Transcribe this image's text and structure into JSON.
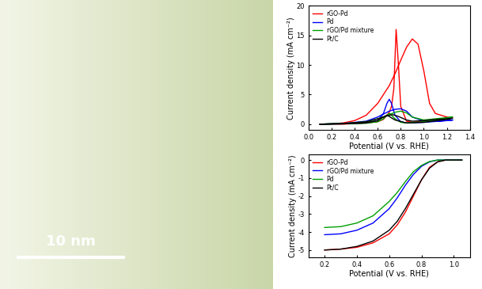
{
  "image": {
    "scale_bar": "10 nm"
  },
  "chart_data": [
    {
      "type": "line",
      "xlabel": "Potential (V vs. RHE)",
      "ylabel": "Current density (mA cm⁻²)",
      "xlim": [
        0.0,
        1.4
      ],
      "xticks": [
        0.0,
        0.2,
        0.4,
        0.6,
        0.8,
        1.0,
        1.2,
        1.4
      ],
      "ylim": [
        -1,
        20
      ],
      "yticks": [
        0,
        5,
        10,
        15,
        20
      ],
      "legend": "upper left",
      "series": [
        {
          "name": "rGO-Pd",
          "color": "#ff0000",
          "x": [
            0.1,
            0.2,
            0.3,
            0.4,
            0.5,
            0.6,
            0.7,
            0.75,
            0.8,
            0.85,
            0.9,
            0.95,
            1.0,
            1.05,
            1.1,
            1.2,
            1.25,
            1.2,
            1.1,
            1.0,
            0.9,
            0.85,
            0.8,
            0.78,
            0.76,
            0.74,
            0.72,
            0.7,
            0.65,
            0.6,
            0.5,
            0.4,
            0.3,
            0.2,
            0.1
          ],
          "values": [
            0,
            0.05,
            0.2,
            0.6,
            1.5,
            3.5,
            6.5,
            8.5,
            10.8,
            13,
            14.4,
            13.5,
            9,
            3.5,
            1.8,
            1.2,
            1.1,
            1.0,
            0.8,
            0.5,
            0.3,
            0.5,
            3,
            10,
            16,
            6,
            3,
            2,
            0.8,
            0.4,
            0.2,
            0.1,
            0,
            0,
            0
          ]
        },
        {
          "name": "Pd",
          "color": "#0000ff",
          "x": [
            0.1,
            0.3,
            0.5,
            0.6,
            0.7,
            0.75,
            0.8,
            0.85,
            0.9,
            1.0,
            1.1,
            1.2,
            1.25,
            1.2,
            1.0,
            0.85,
            0.8,
            0.75,
            0.72,
            0.7,
            0.68,
            0.65,
            0.6,
            0.5,
            0.3,
            0.1
          ],
          "values": [
            0,
            0.1,
            0.5,
            1.2,
            2.2,
            2.5,
            2.6,
            2.2,
            1.2,
            0.5,
            0.5,
            0.6,
            0.7,
            0.6,
            0.3,
            0.2,
            0.4,
            1.5,
            3.5,
            4.2,
            3.5,
            1.8,
            0.6,
            0.2,
            0.05,
            0
          ]
        },
        {
          "name": "rGO/Pd mixture",
          "color": "#00a000",
          "x": [
            0.1,
            0.3,
            0.5,
            0.6,
            0.7,
            0.75,
            0.8,
            0.85,
            0.9,
            1.0,
            1.1,
            1.2,
            1.25,
            1.2,
            1.0,
            0.85,
            0.8,
            0.75,
            0.72,
            0.7,
            0.68,
            0.65,
            0.6,
            0.5,
            0.3,
            0.1
          ],
          "values": [
            0,
            0.1,
            0.4,
            0.9,
            1.6,
            2.0,
            2.2,
            1.9,
            1.2,
            0.7,
            0.9,
            1.1,
            1.2,
            1.0,
            0.4,
            0.2,
            0.3,
            0.9,
            1.5,
            1.8,
            1.5,
            0.9,
            0.4,
            0.15,
            0.05,
            0
          ]
        },
        {
          "name": "Pt/C",
          "color": "#000000",
          "x": [
            0.1,
            0.3,
            0.5,
            0.6,
            0.65,
            0.7,
            0.73,
            0.78,
            0.85,
            0.9,
            1.0,
            1.1,
            1.2,
            1.25,
            1.2,
            1.0,
            0.85,
            0.75,
            0.7,
            0.68,
            0.65,
            0.6,
            0.5,
            0.3,
            0.1
          ],
          "values": [
            0,
            0.1,
            0.4,
            0.9,
            1.2,
            1.5,
            1.6,
            1.3,
            0.7,
            0.5,
            0.6,
            0.8,
            0.9,
            1.0,
            0.8,
            0.3,
            0.2,
            0.7,
            1.3,
            1.5,
            1.2,
            0.6,
            0.2,
            0.05,
            0
          ]
        }
      ]
    },
    {
      "type": "line",
      "xlabel": "Potential (V vs. RHE)",
      "ylabel": "Current density (mA cm⁻²)",
      "xlim": [
        0.1,
        1.1
      ],
      "xticks": [
        0.2,
        0.4,
        0.6,
        0.8,
        1.0
      ],
      "ylim": [
        -5.4,
        0.3
      ],
      "yticks": [
        -5,
        -4,
        -3,
        -2,
        -1,
        0
      ],
      "legend": "upper left",
      "series": [
        {
          "name": "rGO-Pd",
          "color": "#ff0000",
          "x": [
            0.2,
            0.3,
            0.4,
            0.5,
            0.6,
            0.65,
            0.7,
            0.75,
            0.8,
            0.85,
            0.9,
            0.95,
            1.0,
            1.05
          ],
          "values": [
            -5.0,
            -4.95,
            -4.85,
            -4.6,
            -4.1,
            -3.6,
            -2.9,
            -2.0,
            -1.1,
            -0.4,
            -0.1,
            0,
            0,
            0
          ]
        },
        {
          "name": "rGO/Pd mixture",
          "color": "#0000ff",
          "x": [
            0.2,
            0.3,
            0.4,
            0.5,
            0.6,
            0.65,
            0.7,
            0.75,
            0.8,
            0.85,
            0.9,
            0.95,
            1.0,
            1.05
          ],
          "values": [
            -4.15,
            -4.1,
            -3.9,
            -3.5,
            -2.7,
            -2.1,
            -1.4,
            -0.8,
            -0.35,
            -0.1,
            0,
            0,
            0,
            0
          ]
        },
        {
          "name": "Pd",
          "color": "#00a000",
          "x": [
            0.2,
            0.3,
            0.4,
            0.5,
            0.6,
            0.65,
            0.7,
            0.75,
            0.8,
            0.85,
            0.9,
            0.95,
            1.0,
            1.05
          ],
          "values": [
            -3.75,
            -3.7,
            -3.5,
            -3.1,
            -2.3,
            -1.8,
            -1.2,
            -0.65,
            -0.3,
            -0.08,
            0,
            0,
            0,
            0
          ]
        },
        {
          "name": "Pt/C",
          "color": "#000000",
          "x": [
            0.2,
            0.3,
            0.4,
            0.5,
            0.6,
            0.65,
            0.7,
            0.75,
            0.8,
            0.85,
            0.9,
            0.95,
            1.0,
            1.05
          ],
          "values": [
            -5.0,
            -4.95,
            -4.8,
            -4.5,
            -3.9,
            -3.4,
            -2.7,
            -1.9,
            -1.1,
            -0.45,
            -0.1,
            0,
            0,
            0
          ]
        }
      ]
    }
  ]
}
